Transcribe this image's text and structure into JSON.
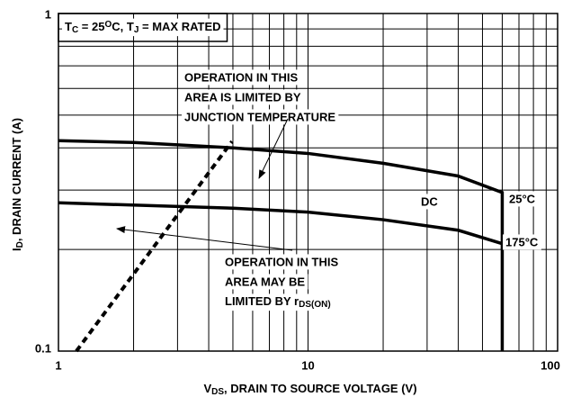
{
  "chart_data": {
    "type": "line",
    "title": {
      "parts": [
        {
          "t": "T"
        },
        {
          "t": "C",
          "sub": true
        },
        {
          "t": " = 25"
        },
        {
          "t": "O",
          "sup": true
        },
        {
          "t": "C, T"
        },
        {
          "t": "J",
          "sub": true
        },
        {
          "t": " = MAX RATED"
        }
      ]
    },
    "xlabel": {
      "parts": [
        {
          "t": "V"
        },
        {
          "t": "DS",
          "sub": true
        },
        {
          "t": ", DRAIN TO SOURCE VOLTAGE (V)"
        }
      ]
    },
    "ylabel": {
      "parts": [
        {
          "t": "I"
        },
        {
          "t": "D",
          "sub": true
        },
        {
          "t": ", DRAIN CURRENT (A)"
        }
      ]
    },
    "xscale": "log",
    "yscale": "log",
    "grid": true,
    "xlim": [
      1,
      100
    ],
    "ylim": [
      0.1,
      1
    ],
    "xticks": [
      1,
      10,
      100
    ],
    "yticks": [
      0.1,
      1
    ],
    "xminor": [
      2,
      3,
      4,
      5,
      6,
      7,
      8,
      9,
      20,
      30,
      40,
      50,
      60,
      70,
      80,
      90
    ],
    "yminor": [
      0.2,
      0.3,
      0.4,
      0.5,
      0.6,
      0.7,
      0.8,
      0.9
    ],
    "series": [
      {
        "name": "25°C",
        "color": "#000000",
        "x": [
          1,
          2,
          5,
          10,
          20,
          40,
          60,
          60
        ],
        "values": [
          0.42,
          0.415,
          0.4,
          0.385,
          0.36,
          0.33,
          0.295,
          0.1
        ]
      },
      {
        "name": "175°C",
        "color": "#000000",
        "x": [
          1,
          5,
          10,
          20,
          40,
          60
        ],
        "values": [
          0.275,
          0.265,
          0.258,
          0.245,
          0.228,
          0.208
        ]
      },
      {
        "color": "#000000",
        "dashed": true,
        "x": [
          1.18,
          4.96
        ],
        "values": [
          0.1,
          0.418
        ]
      }
    ],
    "annotations": [
      {
        "lines": [
          "OPERATION IN THIS",
          "AREA IS LIMITED BY",
          "JUNCTION TEMPERATURE"
        ]
      },
      {
        "lines": [
          "OPERATION IN THIS",
          "AREA MAY BE"
        ],
        "last": {
          "parts": [
            {
              "t": "LIMITED BY r"
            },
            {
              "t": "DS(ON)",
              "sub": true
            }
          ]
        }
      },
      {
        "text": "DC"
      }
    ]
  }
}
